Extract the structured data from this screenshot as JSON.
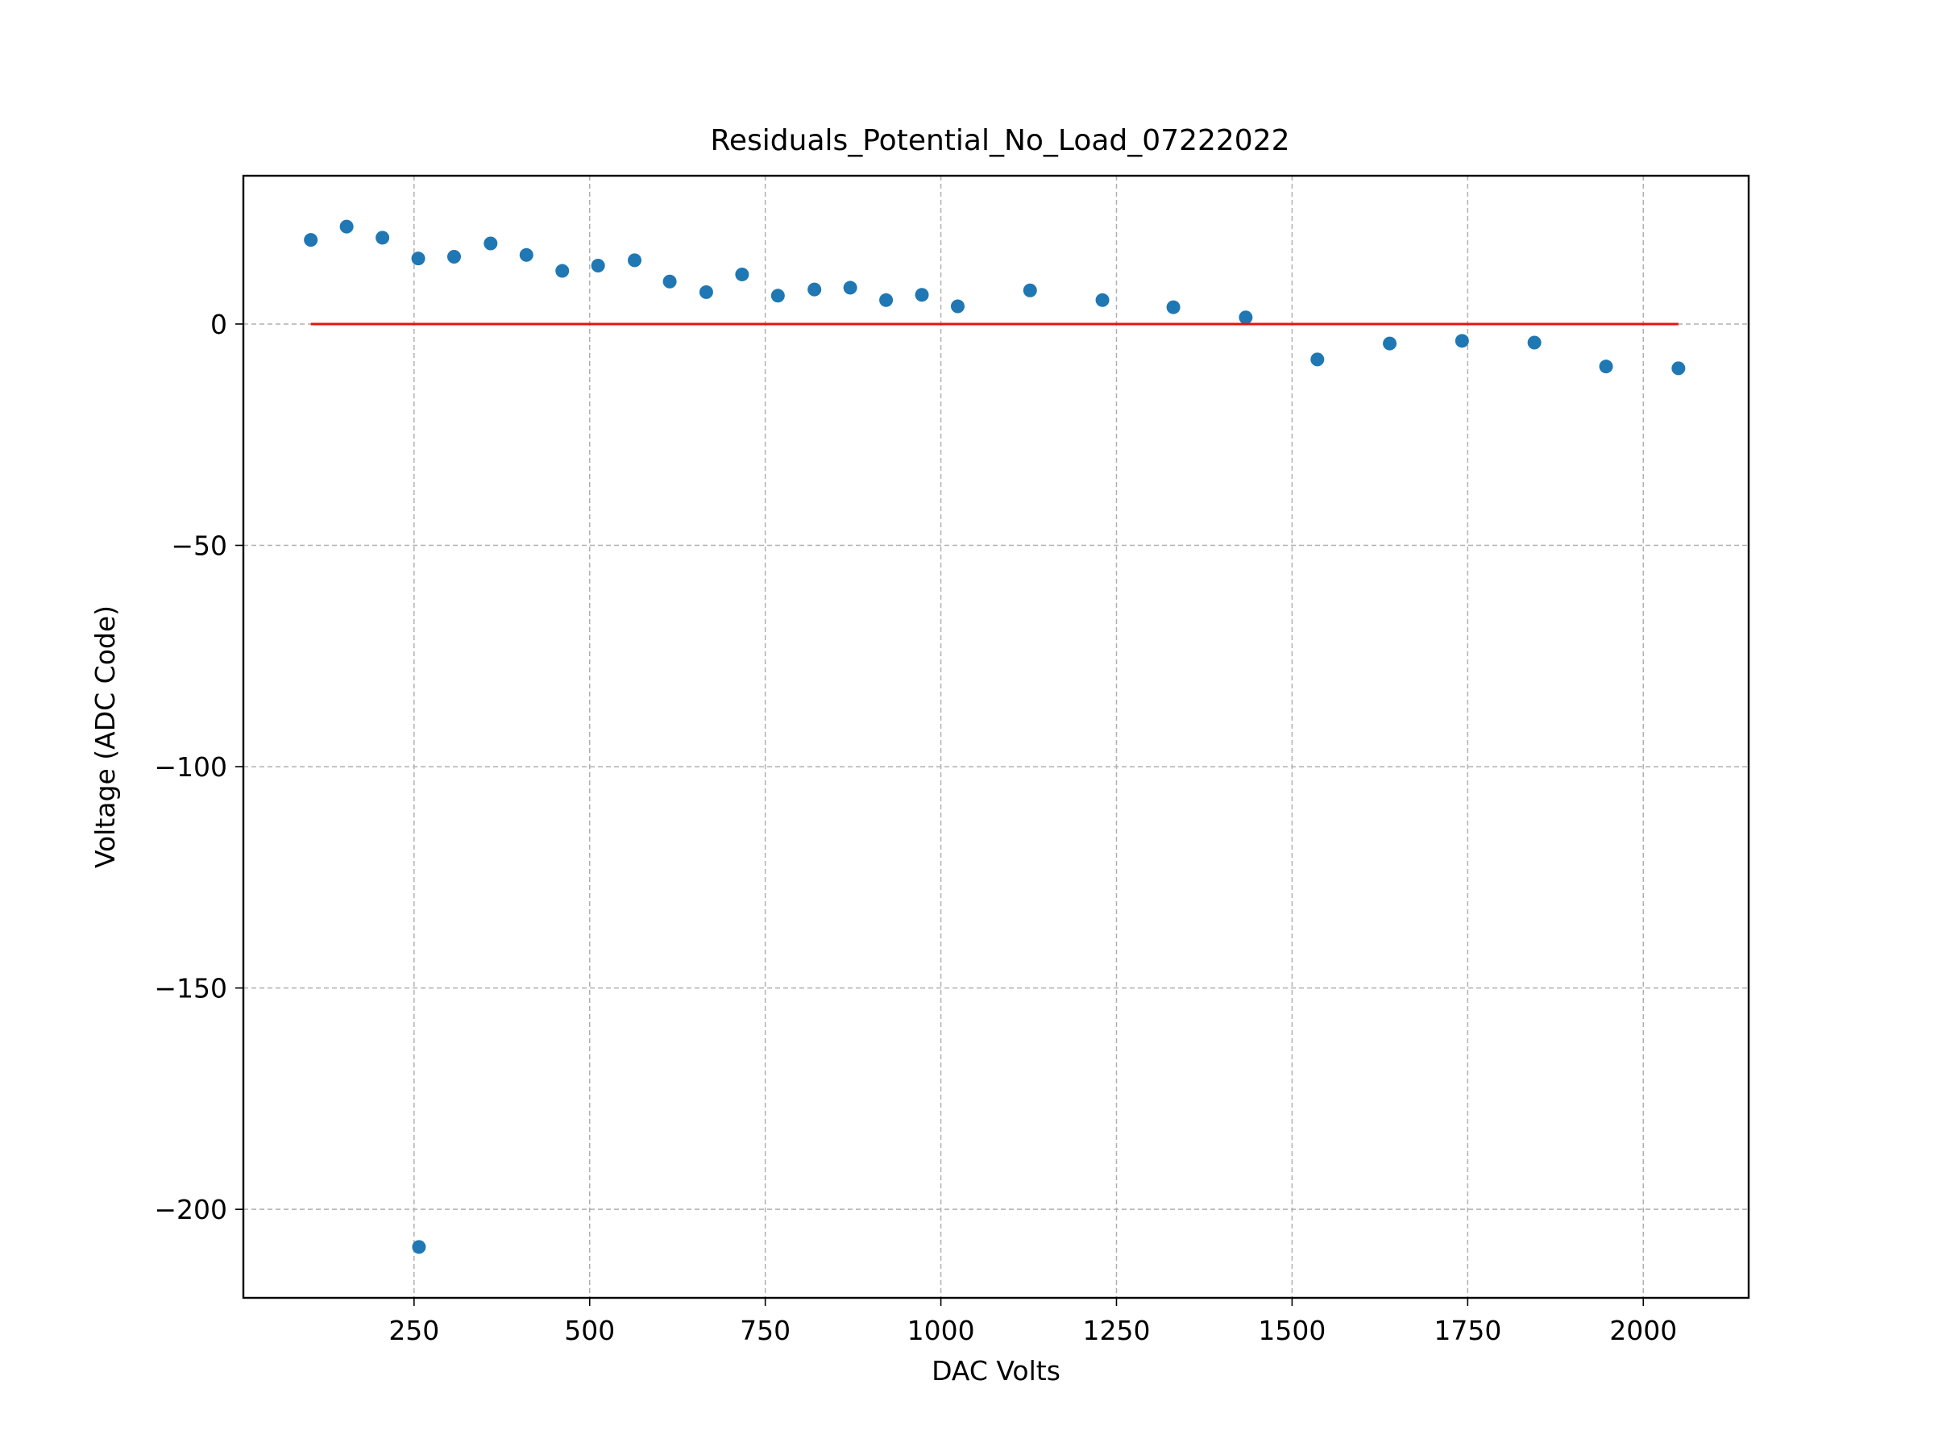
{
  "chart_data": {
    "type": "scatter",
    "title": "Residuals_Potential_No_Load_07222022",
    "xlabel": "DAC Volts",
    "ylabel": "Voltage (ADC Code)",
    "xlim": [
      7,
      2150
    ],
    "ylim": [
      -220,
      33.5
    ],
    "xticks": [
      250,
      500,
      750,
      1000,
      1250,
      1500,
      1750,
      2000
    ],
    "yticks": [
      0,
      -50,
      -100,
      -150,
      -200
    ],
    "xtick_labels": [
      "250",
      "500",
      "750",
      "1000",
      "1250",
      "1500",
      "1750",
      "2000"
    ],
    "ytick_labels": [
      "0",
      "−50",
      "−100",
      "−150",
      "−200"
    ],
    "grid": true,
    "series": [
      {
        "type": "scatter",
        "color": "#1f77b4",
        "points": [
          [
            103,
            19
          ],
          [
            154,
            22
          ],
          [
            205,
            19.5
          ],
          [
            256,
            14.8
          ],
          [
            257,
            -208.5
          ],
          [
            307,
            15.2
          ],
          [
            359,
            18.2
          ],
          [
            410,
            15.6
          ],
          [
            461,
            12
          ],
          [
            512,
            13.2
          ],
          [
            564,
            14.4
          ],
          [
            614,
            9.6
          ],
          [
            666,
            7.2
          ],
          [
            717,
            11.2
          ],
          [
            768,
            6.4
          ],
          [
            820,
            7.8
          ],
          [
            871,
            8.2
          ],
          [
            922,
            5.4
          ],
          [
            973,
            6.6
          ],
          [
            1024,
            4
          ],
          [
            1127,
            7.6
          ],
          [
            1230,
            5.4
          ],
          [
            1331,
            3.8
          ],
          [
            1434,
            1.5
          ],
          [
            1536,
            -8
          ],
          [
            1639,
            -4.4
          ],
          [
            1742,
            -3.8
          ],
          [
            1845,
            -4.2
          ],
          [
            1947,
            -9.6
          ],
          [
            2050,
            -10
          ]
        ]
      },
      {
        "type": "line",
        "color": "#e8130f",
        "points": [
          [
            103,
            0
          ],
          [
            2050,
            0
          ]
        ]
      }
    ]
  }
}
